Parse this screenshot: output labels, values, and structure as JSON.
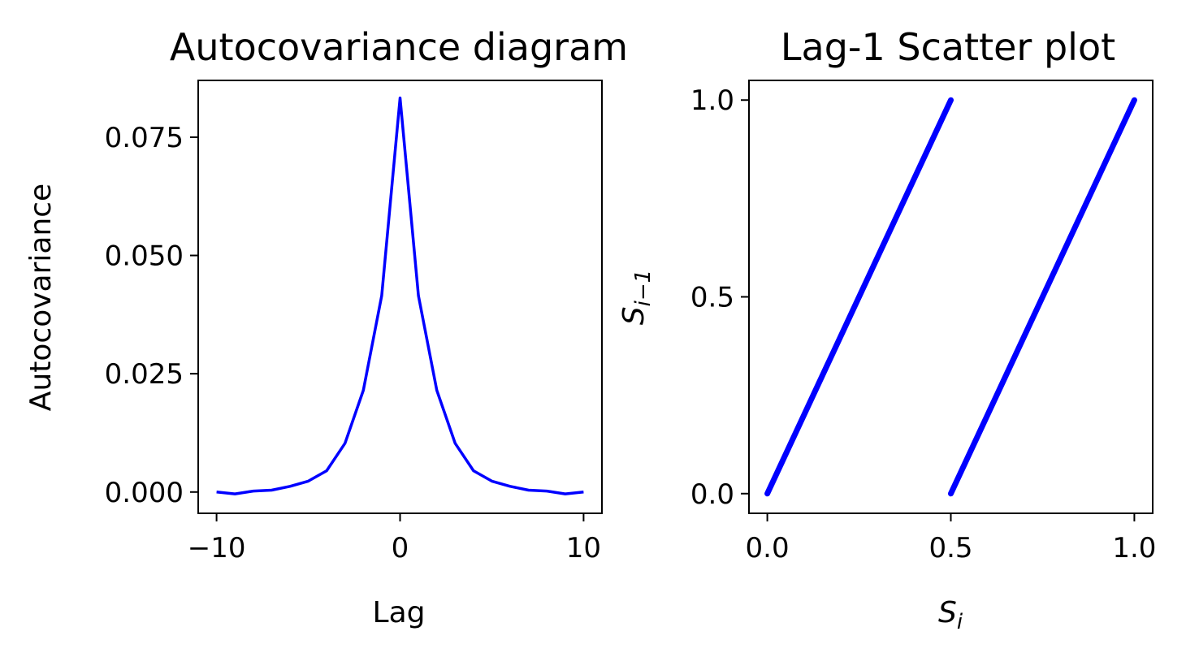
{
  "chart_data": [
    {
      "type": "line",
      "title": "Autocovariance diagram",
      "xlabel": "Lag",
      "ylabel": "Autocovariance",
      "xlim": [
        -11,
        11
      ],
      "ylim": [
        -0.0045,
        0.087
      ],
      "xticks": [
        -10,
        0,
        10
      ],
      "xtick_labels": [
        "−10",
        "0",
        "10"
      ],
      "yticks": [
        0.0,
        0.025,
        0.05,
        0.075
      ],
      "ytick_labels": [
        "0.000",
        "0.025",
        "0.050",
        "0.075"
      ],
      "grid": false,
      "color": "#0000ff",
      "x": [
        -10,
        -9,
        -8,
        -7,
        -6,
        -5,
        -4,
        -3,
        -2,
        -1,
        0,
        1,
        2,
        3,
        4,
        5,
        6,
        7,
        8,
        9,
        10
      ],
      "y": [
        0.0,
        -0.0004,
        0.0002,
        0.0004,
        0.0012,
        0.0023,
        0.0045,
        0.0103,
        0.0215,
        0.0415,
        0.0833,
        0.0415,
        0.0215,
        0.0103,
        0.0045,
        0.0023,
        0.0012,
        0.0004,
        0.0002,
        -0.0004,
        0.0
      ]
    },
    {
      "type": "scatter",
      "title": "Lag-1 Scatter plot",
      "xlabel": "S",
      "xlabel_sub": "i",
      "ylabel": "S",
      "ylabel_sub": "i−1",
      "xlim": [
        -0.05,
        1.05
      ],
      "ylim": [
        -0.05,
        1.05
      ],
      "xticks": [
        0.0,
        0.5,
        1.0
      ],
      "xtick_labels": [
        "0.0",
        "0.5",
        "1.0"
      ],
      "yticks": [
        0.0,
        0.5,
        1.0
      ],
      "ytick_labels": [
        "0.0",
        "0.5",
        "1.0"
      ],
      "grid": false,
      "color": "#0000ff",
      "segments": [
        {
          "x": [
            0.0,
            0.5
          ],
          "y": [
            0.0,
            1.0
          ]
        },
        {
          "x": [
            0.5,
            1.0
          ],
          "y": [
            0.0,
            1.0
          ]
        }
      ]
    }
  ]
}
